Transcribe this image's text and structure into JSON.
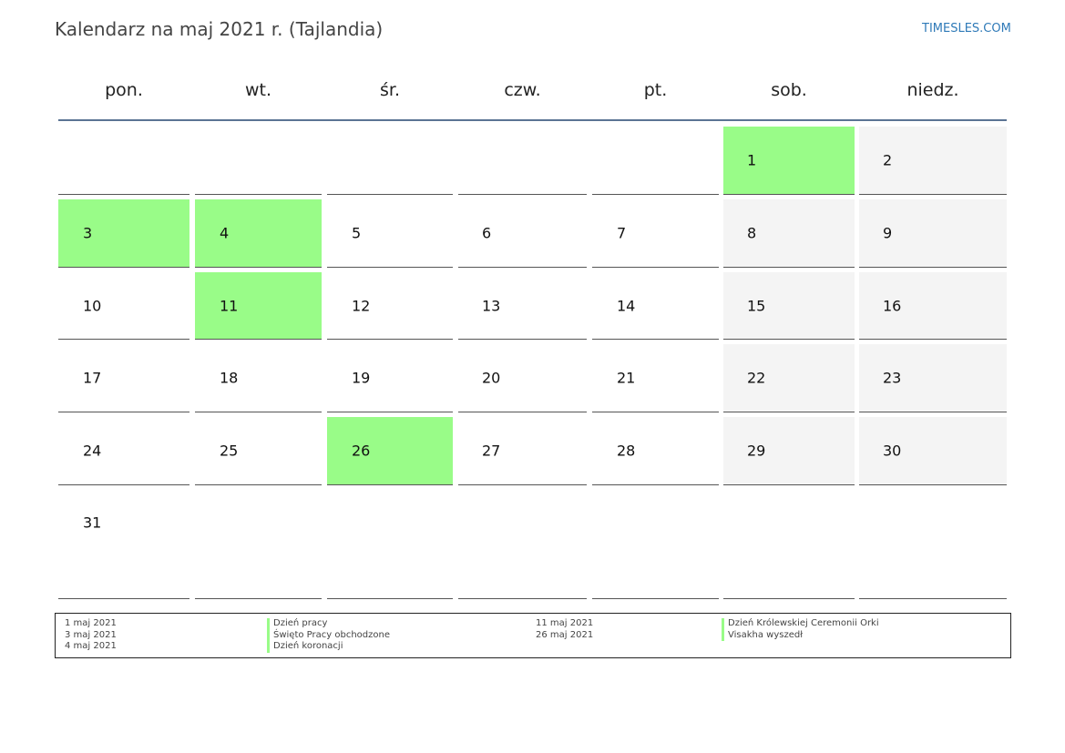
{
  "header": {
    "title": "Kalendarz na maj 2021 r. (Tajlandia)",
    "site": "TIMESLES.COM"
  },
  "weekdays": [
    "pon.",
    "wt.",
    "śr.",
    "czw.",
    "pt.",
    "sob.",
    "niedz."
  ],
  "weeks": [
    [
      null,
      null,
      null,
      null,
      null,
      1,
      2
    ],
    [
      3,
      4,
      5,
      6,
      7,
      8,
      9
    ],
    [
      10,
      11,
      12,
      13,
      14,
      15,
      16
    ],
    [
      17,
      18,
      19,
      20,
      21,
      22,
      23
    ],
    [
      24,
      25,
      26,
      27,
      28,
      29,
      30
    ],
    [
      31,
      null,
      null,
      null,
      null,
      null,
      null
    ]
  ],
  "holiday_days": [
    1,
    3,
    4,
    11,
    26
  ],
  "highlight_color": "#99fc88",
  "holidays": [
    {
      "date": "1 maj 2021",
      "name": "Dzień pracy"
    },
    {
      "date": "3 maj 2021",
      "name": "Święto Pracy obchodzone"
    },
    {
      "date": "4 maj 2021",
      "name": "Dzień koronacji"
    },
    {
      "date": "11 maj 2021",
      "name": "Dzień Królewskiej Ceremonii Orki"
    },
    {
      "date": "26 maj 2021",
      "name": "Visakha wyszedł"
    }
  ]
}
